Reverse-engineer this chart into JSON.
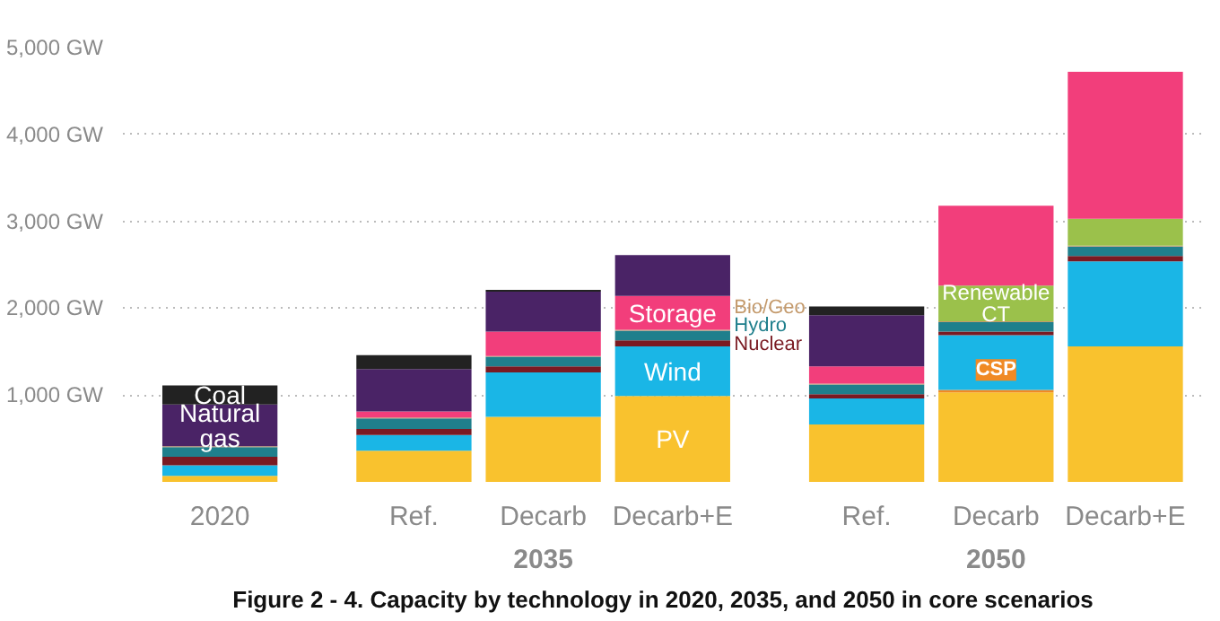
{
  "chart_data": {
    "type": "bar",
    "stacked": true,
    "title": "Figure 2 - 4. Capacity by technology in 2020, 2035, and 2050 in core scenarios",
    "categories": [
      "2020",
      "Ref.",
      "Decarb\n2035",
      "Decarb+E",
      "Ref.",
      "Decarb\n2050",
      "Decarb+E"
    ],
    "series": [
      {
        "name": "PV",
        "color": "#f9c22e",
        "values": [
          70,
          360,
          750,
          990,
          660,
          1030,
          1560
        ]
      },
      {
        "name": "CSP",
        "color": "#f08a24",
        "values": [
          0,
          0,
          0,
          0,
          0,
          30,
          0
        ]
      },
      {
        "name": "Wind",
        "color": "#1ab6e6",
        "values": [
          120,
          180,
          510,
          570,
          300,
          630,
          980
        ]
      },
      {
        "name": "Nuclear",
        "color": "#7a1a22",
        "values": [
          100,
          70,
          70,
          70,
          50,
          40,
          60
        ]
      },
      {
        "name": "Hydro",
        "color": "#1f7f8c",
        "values": [
          110,
          120,
          110,
          110,
          110,
          110,
          110
        ]
      },
      {
        "name": "Bio/Geo",
        "color": "#c49a6c",
        "values": [
          10,
          10,
          10,
          10,
          10,
          10,
          10
        ]
      },
      {
        "name": "Renewable CT",
        "color": "#9bc14b",
        "values": [
          0,
          0,
          0,
          0,
          0,
          410,
          310
        ]
      },
      {
        "name": "Storage",
        "color": "#f23e7b",
        "values": [
          0,
          70,
          280,
          390,
          200,
          920,
          1690
        ]
      },
      {
        "name": "Natural gas",
        "color": "#4a2366",
        "values": [
          480,
          490,
          460,
          470,
          590,
          0,
          0
        ]
      },
      {
        "name": "Coal",
        "color": "#222222",
        "values": [
          220,
          160,
          20,
          0,
          100,
          0,
          0
        ]
      }
    ],
    "ylim": [
      0,
      5000
    ],
    "yticks": [
      {
        "value": 1000,
        "label": "1,000 GW"
      },
      {
        "value": 2000,
        "label": "2,000 GW"
      },
      {
        "value": 3000,
        "label": "3,000 GW"
      },
      {
        "value": 4000,
        "label": "4,000 GW"
      },
      {
        "value": 5000,
        "label": "5,000 GW"
      }
    ],
    "grid": "y"
  }
}
